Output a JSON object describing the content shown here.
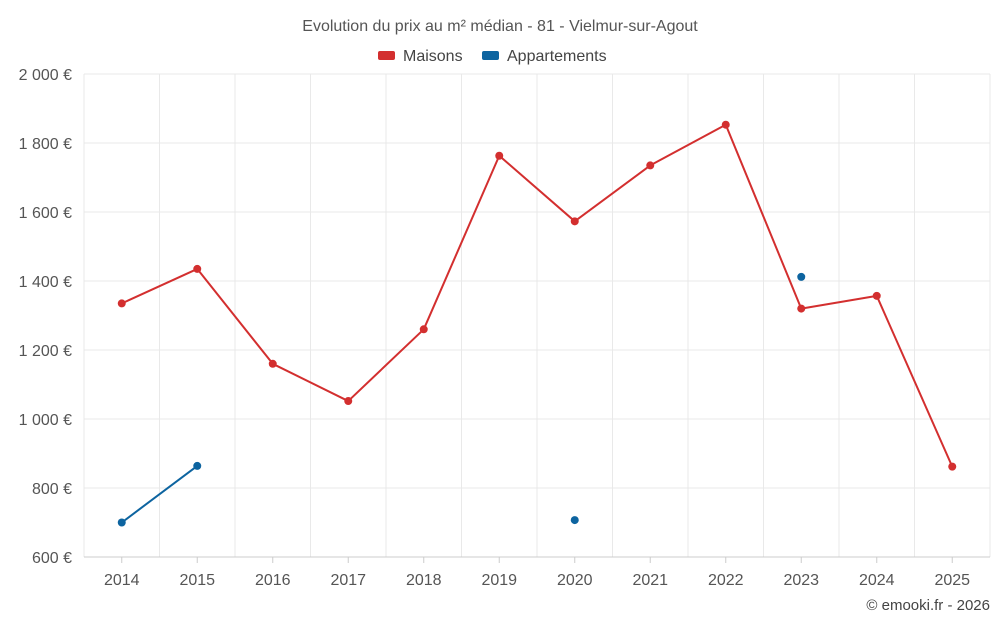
{
  "credit": "© emooki.fr - 2026",
  "chart_data": {
    "type": "line",
    "title": "Evolution du prix au m² médian - 81 - Vielmur-sur-Agout",
    "xlabel": "",
    "ylabel": "",
    "categories": [
      "2014",
      "2015",
      "2016",
      "2017",
      "2018",
      "2019",
      "2020",
      "2021",
      "2022",
      "2023",
      "2024",
      "2025"
    ],
    "ylim": [
      600,
      2000
    ],
    "yticks": [
      600,
      800,
      1000,
      1200,
      1400,
      1600,
      1800,
      2000
    ],
    "ytick_labels": [
      "600 €",
      "800 €",
      "1 000 €",
      "1 200 €",
      "1 400 €",
      "1 600 €",
      "1 800 €",
      "2 000 €"
    ],
    "grid": true,
    "legend_position": "top-center",
    "series": [
      {
        "name": "Maisons",
        "color": "#d32f2f",
        "values": [
          1335,
          1435,
          1160,
          1052,
          1260,
          1763,
          1573,
          1735,
          1853,
          1320,
          1357,
          862
        ]
      },
      {
        "name": "Appartements",
        "color": "#0d64a0",
        "values": [
          700,
          864,
          null,
          null,
          null,
          null,
          707,
          null,
          null,
          1412,
          null,
          null
        ]
      }
    ]
  }
}
